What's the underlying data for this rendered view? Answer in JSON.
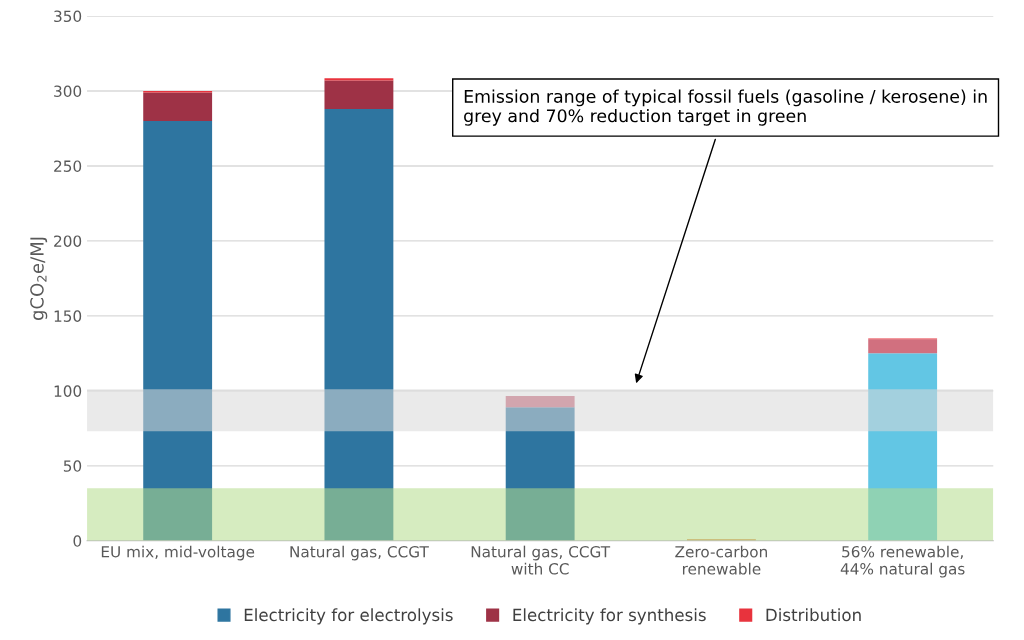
{
  "chart_data": {
    "type": "bar",
    "stacked": true,
    "ylabel": "gCO$_{2}$e/MJ",
    "categories": [
      "EU mix, mid-voltage",
      "Natural gas, CCGT",
      "Natural gas, CCGT\nwith CC",
      "Zero-carbon\nrenewable",
      "56% renewable,\n44% natural gas"
    ],
    "series": [
      {
        "name": "Electricity for electrolysis",
        "color": "#2e75a0",
        "colors": [
          "#2e75a0",
          "#2e75a0",
          "#2e75a0",
          "#2e75a0",
          "#62c6e4"
        ],
        "values": [
          280,
          288,
          89,
          0,
          125
        ]
      },
      {
        "name": "Electricity for synthesis",
        "color": "#9e3246",
        "colors": [
          "#9e3246",
          "#9e3246",
          "#c9677a",
          "#9e3246",
          "#d1707f"
        ],
        "values": [
          19,
          19,
          7.5,
          0,
          9.5
        ]
      },
      {
        "name": "Distribution",
        "color": "#e8333d",
        "colors": [
          "#e8333d",
          "#e8333d",
          "#e8333d",
          "#e07b39",
          "#e8333d"
        ],
        "values": [
          1,
          1.5,
          null,
          1,
          0.5
        ]
      }
    ],
    "ylim": [
      0,
      350
    ],
    "yticks": [
      0,
      50,
      100,
      150,
      200,
      250,
      300,
      350
    ],
    "grid": "y",
    "legend": "bottom",
    "bands": [
      {
        "axis": "y",
        "from": 73,
        "to": 101,
        "color": "#d9d9d9"
      },
      {
        "axis": "y",
        "from": 0,
        "to": 35,
        "color": "#b4dc8c"
      }
    ],
    "annotations": [
      "Emission range of typical fossil fuels (gasoline / kerosene) in grey and 70% reduction target in green"
    ]
  }
}
